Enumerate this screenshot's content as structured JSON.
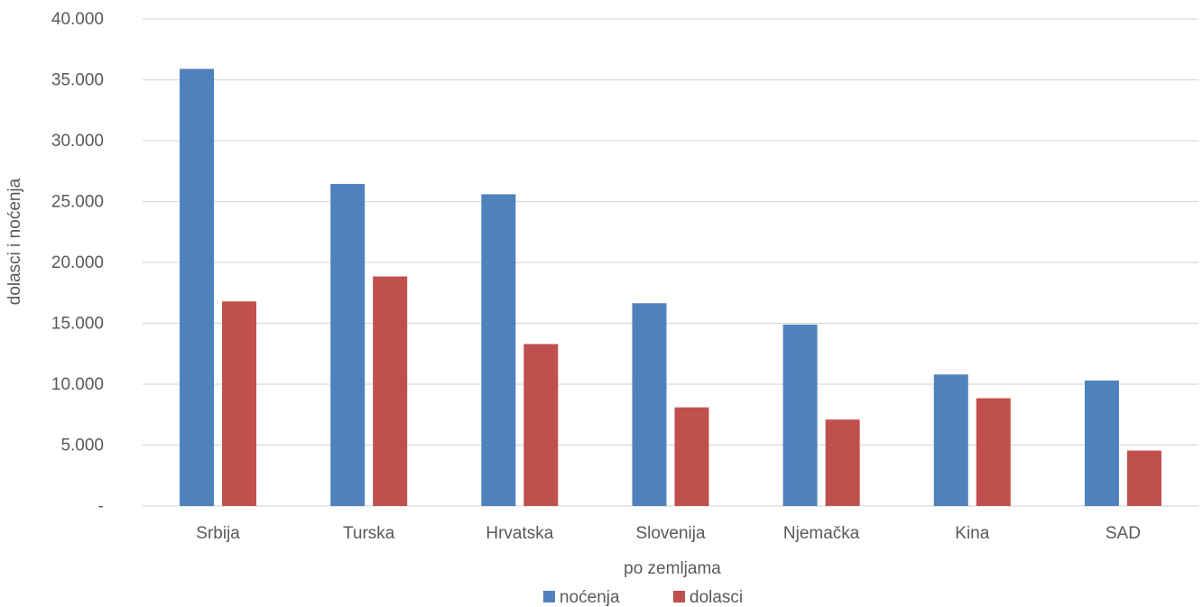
{
  "chart_data": {
    "type": "bar",
    "categories": [
      "Srbija",
      "Turska",
      "Hrvatska",
      "Slovenija",
      "Njemačka",
      "Kina",
      "SAD"
    ],
    "series": [
      {
        "name": "noćenja",
        "color": "#4f81bd",
        "values": [
          35900,
          26450,
          25600,
          16650,
          14900,
          10800,
          10300
        ]
      },
      {
        "name": "dolasci",
        "color": "#c0504d",
        "values": [
          16800,
          18850,
          13300,
          8100,
          7100,
          8850,
          4550
        ]
      }
    ],
    "ylim": [
      0,
      40000
    ],
    "yticks": [
      0,
      5000,
      10000,
      15000,
      20000,
      25000,
      30000,
      35000,
      40000
    ],
    "ytick_labels": [
      "-",
      "5.000",
      "10.000",
      "15.000",
      "20.000",
      "25.000",
      "30.000",
      "35.000",
      "40.000"
    ],
    "xlabel": "po zemljama",
    "ylabel": "dolasci i noćenja",
    "title": "",
    "grid": true,
    "gridline_color": "#d9d9d9",
    "legend_position": "bottom"
  }
}
